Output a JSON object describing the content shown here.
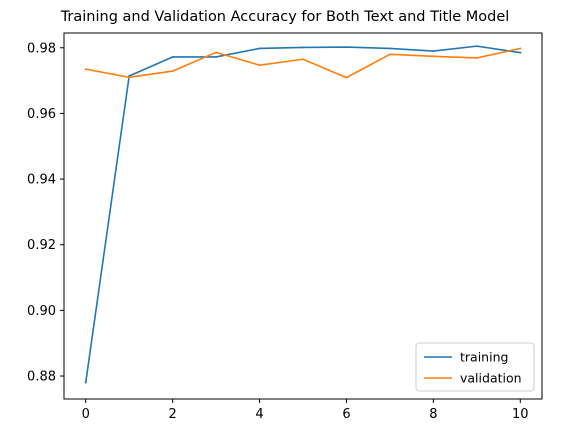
{
  "chart_data": {
    "type": "line",
    "title": "Training and Validation Accuracy for Both Text and Title Model",
    "xlabel": "",
    "ylabel": "",
    "x": [
      0,
      1,
      2,
      3,
      4,
      5,
      6,
      7,
      8,
      9,
      10
    ],
    "xlim": [
      -0.5,
      10.5
    ],
    "ylim": [
      0.873,
      0.9845
    ],
    "xticks": [
      0,
      2,
      4,
      6,
      8,
      10
    ],
    "yticks": [
      0.88,
      0.9,
      0.92,
      0.94,
      0.96,
      0.98
    ],
    "ytick_labels": [
      "0.88",
      "0.90",
      "0.92",
      "0.94",
      "0.96",
      "0.98"
    ],
    "grid": false,
    "legend_position": "lower-right",
    "series": [
      {
        "name": "training",
        "color": "#1f77b4",
        "values": [
          0.878,
          0.9714,
          0.9772,
          0.9772,
          0.9798,
          0.9801,
          0.9802,
          0.9798,
          0.979,
          0.9805,
          0.9785
        ]
      },
      {
        "name": "validation",
        "color": "#ff7f0e",
        "values": [
          0.9735,
          0.971,
          0.9729,
          0.9786,
          0.9747,
          0.9765,
          0.9709,
          0.978,
          0.9774,
          0.9769,
          0.9798
        ]
      }
    ]
  }
}
